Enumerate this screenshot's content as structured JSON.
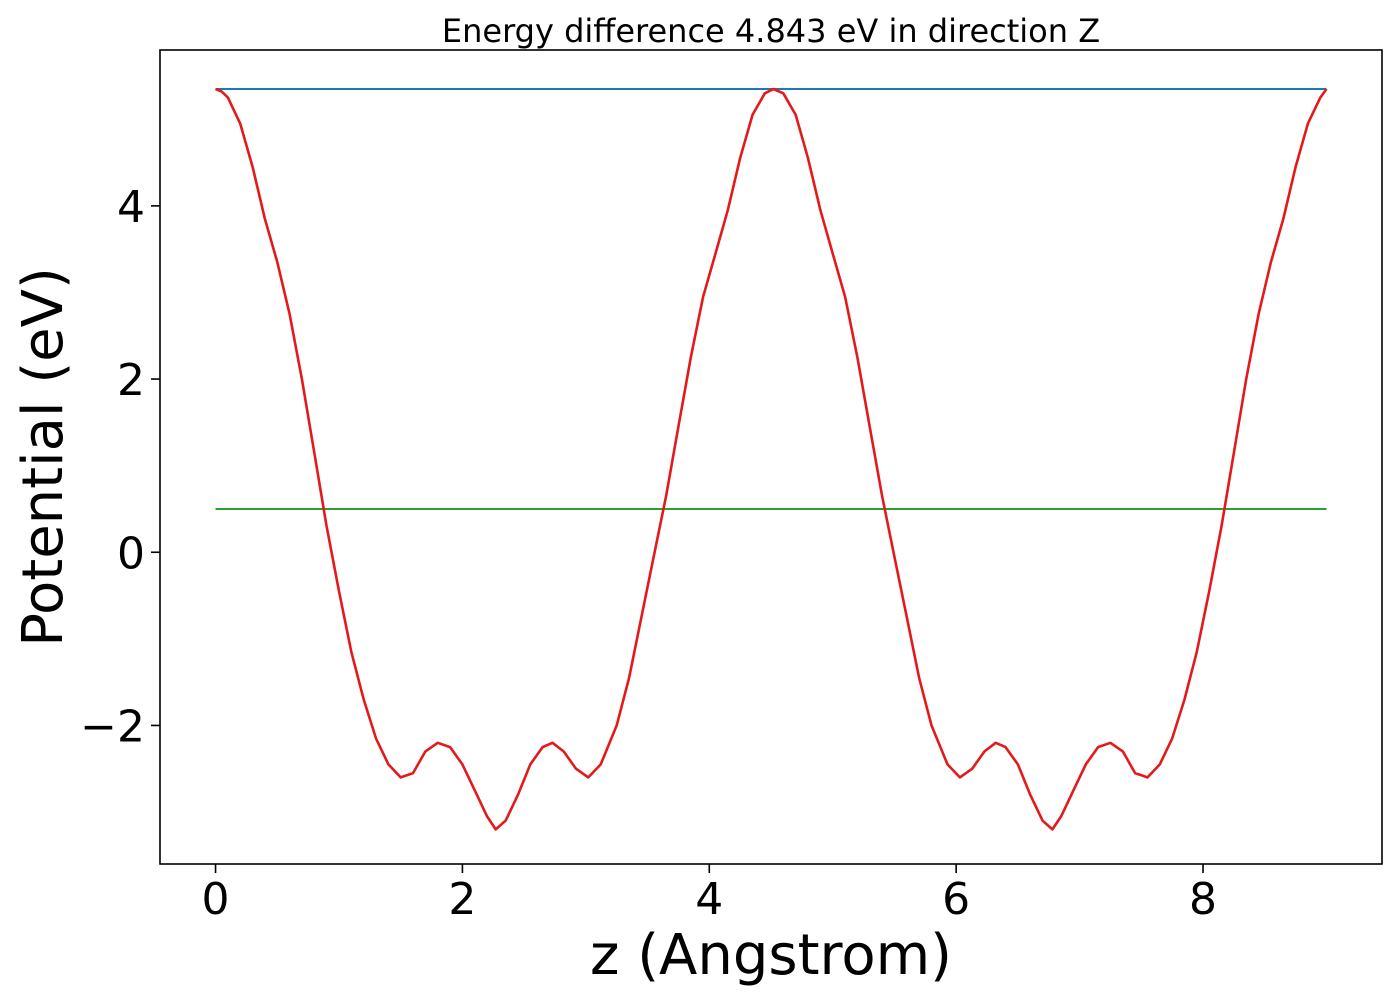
{
  "chart_data": {
    "type": "line",
    "title": "Energy difference 4.843 eV in direction Z",
    "xlabel": "z (Angstrom)",
    "ylabel": "Potential (eV)",
    "xlim": [
      -0.45,
      9.45
    ],
    "ylim": [
      -3.6,
      5.8
    ],
    "xticks": [
      0,
      2,
      4,
      6,
      8
    ],
    "yticks": [
      -2,
      0,
      2,
      4
    ],
    "xtick_labels": [
      "0",
      "2",
      "4",
      "6",
      "8"
    ],
    "ytick_labels": [
      "−2",
      "0",
      "2",
      "4"
    ],
    "grid": false,
    "legend": "none",
    "series": [
      {
        "color": "#1f77b4",
        "points": [
          [
            0,
            5.35
          ],
          [
            9.0,
            5.35
          ]
        ]
      },
      {
        "color": "#2ca02c",
        "points": [
          [
            0,
            0.5
          ],
          [
            9.0,
            0.5
          ]
        ]
      },
      {
        "color": "#e31a1c",
        "points": [
          [
            0.0,
            5.35
          ],
          [
            0.05,
            5.32
          ],
          [
            0.1,
            5.25
          ],
          [
            0.2,
            4.95
          ],
          [
            0.3,
            4.45
          ],
          [
            0.4,
            3.85
          ],
          [
            0.5,
            3.35
          ],
          [
            0.6,
            2.75
          ],
          [
            0.7,
            2.0
          ],
          [
            0.8,
            1.15
          ],
          [
            0.9,
            0.3
          ],
          [
            1.0,
            -0.45
          ],
          [
            1.1,
            -1.15
          ],
          [
            1.2,
            -1.7
          ],
          [
            1.3,
            -2.15
          ],
          [
            1.4,
            -2.45
          ],
          [
            1.5,
            -2.6
          ],
          [
            1.6,
            -2.55
          ],
          [
            1.7,
            -2.3
          ],
          [
            1.8,
            -2.2
          ],
          [
            1.9,
            -2.25
          ],
          [
            2.0,
            -2.45
          ],
          [
            2.1,
            -2.75
          ],
          [
            2.2,
            -3.05
          ],
          [
            2.27,
            -3.2
          ],
          [
            2.35,
            -3.1
          ],
          [
            2.45,
            -2.8
          ],
          [
            2.55,
            -2.45
          ],
          [
            2.65,
            -2.25
          ],
          [
            2.73,
            -2.2
          ],
          [
            2.82,
            -2.3
          ],
          [
            2.92,
            -2.5
          ],
          [
            3.02,
            -2.6
          ],
          [
            3.12,
            -2.45
          ],
          [
            3.25,
            -2.0
          ],
          [
            3.35,
            -1.45
          ],
          [
            3.45,
            -0.75
          ],
          [
            3.55,
            -0.05
          ],
          [
            3.65,
            0.65
          ],
          [
            3.75,
            1.45
          ],
          [
            3.85,
            2.25
          ],
          [
            3.95,
            2.95
          ],
          [
            4.05,
            3.45
          ],
          [
            4.15,
            3.95
          ],
          [
            4.25,
            4.55
          ],
          [
            4.35,
            5.05
          ],
          [
            4.45,
            5.3
          ],
          [
            4.52,
            5.35
          ],
          [
            4.6,
            5.3
          ],
          [
            4.7,
            5.05
          ],
          [
            4.8,
            4.55
          ],
          [
            4.9,
            3.95
          ],
          [
            5.0,
            3.45
          ],
          [
            5.1,
            2.95
          ],
          [
            5.2,
            2.25
          ],
          [
            5.3,
            1.45
          ],
          [
            5.4,
            0.65
          ],
          [
            5.5,
            -0.05
          ],
          [
            5.6,
            -0.75
          ],
          [
            5.7,
            -1.45
          ],
          [
            5.8,
            -2.0
          ],
          [
            5.93,
            -2.45
          ],
          [
            6.03,
            -2.6
          ],
          [
            6.13,
            -2.5
          ],
          [
            6.23,
            -2.3
          ],
          [
            6.32,
            -2.2
          ],
          [
            6.4,
            -2.25
          ],
          [
            6.5,
            -2.45
          ],
          [
            6.6,
            -2.8
          ],
          [
            6.7,
            -3.1
          ],
          [
            6.78,
            -3.2
          ],
          [
            6.85,
            -3.05
          ],
          [
            6.95,
            -2.75
          ],
          [
            7.05,
            -2.45
          ],
          [
            7.15,
            -2.25
          ],
          [
            7.25,
            -2.2
          ],
          [
            7.35,
            -2.3
          ],
          [
            7.45,
            -2.55
          ],
          [
            7.55,
            -2.6
          ],
          [
            7.65,
            -2.45
          ],
          [
            7.75,
            -2.15
          ],
          [
            7.85,
            -1.7
          ],
          [
            7.95,
            -1.15
          ],
          [
            8.05,
            -0.45
          ],
          [
            8.15,
            0.3
          ],
          [
            8.25,
            1.15
          ],
          [
            8.35,
            2.0
          ],
          [
            8.45,
            2.75
          ],
          [
            8.55,
            3.35
          ],
          [
            8.65,
            3.85
          ],
          [
            8.75,
            4.45
          ],
          [
            8.85,
            4.95
          ],
          [
            8.95,
            5.25
          ],
          [
            9.0,
            5.35
          ]
        ]
      }
    ]
  }
}
